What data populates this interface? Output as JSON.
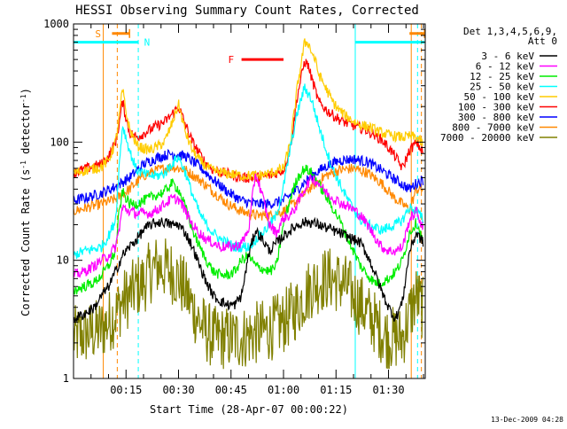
{
  "chart_data": {
    "type": "line",
    "title": "HESSI Observing Summary Count Rates, Corrected",
    "xlabel": "Start Time (28-Apr-07 00:00:22)",
    "ylabel_parts": [
      "Corrected Count Rate (s",
      "-1",
      " detector",
      "-1",
      ")"
    ],
    "ylabel": "Corrected Count Rate (s^-1 detector^-1)",
    "y_scale": "log",
    "ylim": [
      1,
      1000
    ],
    "y_ticks": [
      {
        "value": 1,
        "label": "1"
      },
      {
        "value": 10,
        "label": "10"
      },
      {
        "value": 100,
        "label": "100"
      },
      {
        "value": 1000,
        "label": "1000"
      }
    ],
    "x_range_minutes": [
      0,
      100.5
    ],
    "x_ticks": [
      {
        "minute": 15,
        "label": "00:15"
      },
      {
        "minute": 30,
        "label": "00:30"
      },
      {
        "minute": 45,
        "label": "00:45"
      },
      {
        "minute": 60,
        "label": "01:00"
      },
      {
        "minute": 75,
        "label": "01:15"
      },
      {
        "minute": 90,
        "label": "01:30"
      }
    ],
    "legend_position": "right",
    "legend_header": [
      "Det 1,3,4,5,6,9,",
      "Att 0"
    ],
    "series": [
      {
        "name": "3 - 6 keV",
        "color": "#000000",
        "x": [
          0,
          3,
          6,
          8,
          10,
          12,
          14,
          16,
          18,
          20,
          22,
          24,
          26,
          28,
          30,
          32,
          34,
          36,
          38,
          40,
          42,
          44,
          46,
          48,
          50,
          52,
          54,
          56,
          58,
          60,
          62,
          64,
          66,
          68,
          70,
          72,
          74,
          76,
          78,
          80,
          82,
          84,
          86,
          88,
          90,
          92,
          94,
          96,
          98,
          100
        ],
        "y": [
          3.2,
          3.5,
          4,
          5,
          6,
          8,
          11,
          13,
          15,
          18,
          20,
          21,
          21,
          20,
          20,
          17,
          13,
          9,
          6.5,
          5,
          4.5,
          4.2,
          4.2,
          5,
          11,
          18,
          15,
          12,
          14,
          16,
          18,
          20,
          21,
          21,
          20,
          19,
          18,
          17,
          16,
          15,
          14,
          11,
          8,
          5.5,
          4,
          3.2,
          4.5,
          12,
          17,
          14
        ]
      },
      {
        "name": "6 - 12 keV",
        "color": "#ff00ff",
        "x": [
          0,
          3,
          6,
          8,
          10,
          12,
          13,
          14,
          16,
          18,
          20,
          22,
          24,
          26,
          28,
          30,
          32,
          34,
          36,
          38,
          40,
          42,
          44,
          46,
          48,
          50,
          52,
          54,
          56,
          58,
          60,
          62,
          64,
          66,
          68,
          70,
          72,
          74,
          76,
          78,
          80,
          82,
          84,
          86,
          88,
          90,
          92,
          94,
          96,
          98,
          100
        ],
        "y": [
          7.5,
          8,
          9,
          10,
          11,
          13,
          18,
          28,
          26,
          25,
          25,
          25,
          27,
          30,
          33,
          33,
          26,
          20,
          17,
          15,
          14,
          13,
          13,
          13,
          14,
          18,
          55,
          35,
          20,
          17,
          23,
          24,
          30,
          40,
          50,
          45,
          38,
          34,
          31,
          29,
          27,
          24,
          20,
          16,
          13,
          12,
          12,
          13,
          22,
          26,
          18
        ]
      },
      {
        "name": "12 - 25 keV",
        "color": "#00ee00",
        "x": [
          0,
          3,
          6,
          8,
          10,
          12,
          13,
          14,
          16,
          18,
          20,
          22,
          24,
          26,
          28,
          30,
          32,
          34,
          36,
          38,
          40,
          42,
          44,
          46,
          48,
          50,
          52,
          54,
          56,
          58,
          60,
          62,
          64,
          66,
          68,
          70,
          72,
          74,
          76,
          78,
          80,
          82,
          84,
          86,
          88,
          90,
          92,
          94,
          96,
          98,
          100
        ],
        "y": [
          5.5,
          6,
          6.5,
          7.5,
          9,
          12,
          25,
          38,
          30,
          30,
          32,
          34,
          36,
          38,
          45,
          40,
          28,
          18,
          13,
          10,
          8,
          7.5,
          7.5,
          8,
          10,
          11,
          9,
          8.5,
          8,
          9,
          20,
          34,
          50,
          60,
          55,
          45,
          35,
          28,
          22,
          16,
          12,
          9,
          7.5,
          6.5,
          6.5,
          7,
          8,
          10,
          17,
          21,
          14
        ]
      },
      {
        "name": "25 - 50 keV",
        "color": "#00ffff",
        "x": [
          0,
          3,
          6,
          8,
          10,
          12,
          13,
          14,
          16,
          18,
          20,
          22,
          24,
          26,
          28,
          30,
          32,
          34,
          36,
          38,
          40,
          42,
          44,
          46,
          48,
          50,
          52,
          54,
          56,
          58,
          60,
          62,
          64,
          66,
          68,
          70,
          72,
          74,
          76,
          78,
          80,
          82,
          84,
          86,
          88,
          90,
          92,
          94,
          96,
          98,
          100
        ],
        "y": [
          11,
          12,
          12.5,
          13,
          16,
          22,
          60,
          140,
          85,
          58,
          54,
          52,
          52,
          54,
          65,
          75,
          55,
          36,
          25,
          20,
          17,
          15,
          14,
          13,
          13,
          13,
          15,
          17,
          20,
          24,
          42,
          90,
          180,
          290,
          230,
          140,
          90,
          60,
          45,
          34,
          27,
          22,
          20,
          19,
          18,
          19,
          20,
          22,
          28,
          26,
          22
        ]
      },
      {
        "name": "50 - 100 keV",
        "color": "#ffcc00",
        "x": [
          0,
          4,
          8,
          10,
          12,
          13,
          14,
          15,
          16,
          18,
          20,
          22,
          24,
          26,
          28,
          30,
          32,
          34,
          36,
          38,
          40,
          44,
          48,
          52,
          56,
          60,
          62,
          64,
          66,
          67,
          68,
          69,
          70,
          72,
          74,
          76,
          78,
          80,
          82,
          84,
          86,
          88,
          90,
          92,
          94,
          96,
          98,
          100
        ],
        "y": [
          55,
          58,
          62,
          70,
          100,
          160,
          280,
          180,
          130,
          95,
          88,
          86,
          92,
          100,
          140,
          210,
          120,
          85,
          70,
          62,
          57,
          54,
          52,
          52,
          54,
          60,
          100,
          300,
          690,
          700,
          580,
          500,
          380,
          290,
          220,
          185,
          165,
          150,
          140,
          135,
          128,
          120,
          115,
          112,
          110,
          112,
          110,
          95
        ]
      },
      {
        "name": "100 - 300 keV",
        "color": "#ff0000",
        "x": [
          0,
          4,
          8,
          10,
          12,
          13,
          14,
          15,
          16,
          18,
          20,
          22,
          24,
          26,
          28,
          30,
          32,
          34,
          36,
          38,
          40,
          44,
          48,
          52,
          56,
          60,
          62,
          64,
          66,
          67,
          68,
          69,
          70,
          72,
          74,
          76,
          78,
          80,
          82,
          84,
          86,
          88,
          90,
          92,
          94,
          96,
          98,
          100
        ],
        "y": [
          55,
          60,
          65,
          75,
          100,
          140,
          220,
          160,
          120,
          110,
          118,
          128,
          138,
          148,
          170,
          200,
          140,
          100,
          80,
          65,
          58,
          54,
          50,
          50,
          52,
          58,
          90,
          250,
          480,
          450,
          350,
          280,
          220,
          190,
          170,
          155,
          145,
          138,
          132,
          125,
          115,
          105,
          90,
          75,
          60,
          85,
          100,
          80
        ]
      },
      {
        "name": "300 - 800 keV",
        "color": "#0000ff",
        "x": [
          0,
          4,
          8,
          12,
          16,
          20,
          24,
          28,
          32,
          36,
          40,
          44,
          48,
          52,
          56,
          60,
          64,
          68,
          72,
          76,
          80,
          84,
          88,
          92,
          96,
          98,
          100
        ],
        "y": [
          32,
          34,
          37,
          42,
          50,
          65,
          74,
          80,
          76,
          62,
          48,
          38,
          32,
          30,
          30,
          32,
          40,
          52,
          62,
          70,
          72,
          68,
          58,
          48,
          40,
          45,
          48
        ]
      },
      {
        "name": "800 - 7000 keV",
        "color": "#ff8800",
        "x": [
          0,
          4,
          8,
          12,
          16,
          20,
          24,
          28,
          32,
          36,
          40,
          44,
          48,
          52,
          56,
          60,
          64,
          68,
          72,
          76,
          80,
          84,
          88,
          92,
          96,
          98,
          100
        ],
        "y": [
          26,
          28,
          30,
          33,
          40,
          52,
          58,
          62,
          58,
          48,
          38,
          30,
          26,
          24,
          24,
          26,
          32,
          42,
          52,
          58,
          60,
          55,
          45,
          33,
          27,
          40,
          40
        ]
      },
      {
        "name": "7000 - 20000 keV",
        "color": "#808000",
        "x": [
          0,
          4,
          8,
          12,
          14,
          16,
          18,
          20,
          22,
          24,
          26,
          28,
          30,
          32,
          34,
          36,
          38,
          40,
          44,
          48,
          52,
          56,
          60,
          62,
          64,
          66,
          68,
          70,
          72,
          74,
          76,
          78,
          80,
          82,
          84,
          86,
          88,
          90,
          92,
          94,
          96,
          98,
          100
        ],
        "y": [
          2.2,
          2.4,
          2.6,
          3.5,
          4.5,
          5,
          6,
          6.5,
          8,
          9,
          8.5,
          8,
          7,
          5.5,
          4,
          3,
          2.5,
          2.2,
          2.2,
          2.2,
          2.4,
          2.6,
          3,
          3.5,
          4,
          5,
          6,
          6.5,
          7,
          7,
          6.5,
          6,
          5,
          4.2,
          3.5,
          3,
          2.5,
          2.2,
          2.2,
          2.2,
          3.5,
          5,
          3.8
        ]
      }
    ],
    "flag_bars": [
      {
        "label": "S",
        "color": "#ff8800",
        "x_start": 11,
        "x_end": 16,
        "y_value": 830,
        "end_ticks": true,
        "label_x": 7
      },
      {
        "label": "",
        "color": "#ff8800",
        "x_start": 96,
        "x_end": 100.3,
        "y_value": 830,
        "end_ticks": true
      },
      {
        "label": "N",
        "color": "#00ffff",
        "x_start": 0,
        "x_end": 18.5,
        "y_value": 700,
        "end_ticks": false,
        "label_x": 21
      },
      {
        "label": "",
        "color": "#00ffff",
        "x_start": 80.5,
        "x_end": 100.3,
        "y_value": 700,
        "end_ticks": false
      },
      {
        "label": "F",
        "color": "#ff0000",
        "x_start": 48,
        "x_end": 60,
        "y_value": 500,
        "end_ticks": false,
        "label_x": 45
      }
    ],
    "vertical_lines": [
      {
        "x": 8.5,
        "color": "#ff8800",
        "dashed": false
      },
      {
        "x": 12.5,
        "color": "#ff8800",
        "dashed": true
      },
      {
        "x": 18.5,
        "color": "#00ffff",
        "dashed": true
      },
      {
        "x": 80.5,
        "color": "#00ffff",
        "dashed": false
      },
      {
        "x": 96.5,
        "color": "#ff8800",
        "dashed": false
      },
      {
        "x": 98.3,
        "color": "#00ffff",
        "dashed": true
      },
      {
        "x": 99.4,
        "color": "#ff8800",
        "dashed": true
      }
    ],
    "footer_text": "13-Dec-2009 04:28"
  }
}
